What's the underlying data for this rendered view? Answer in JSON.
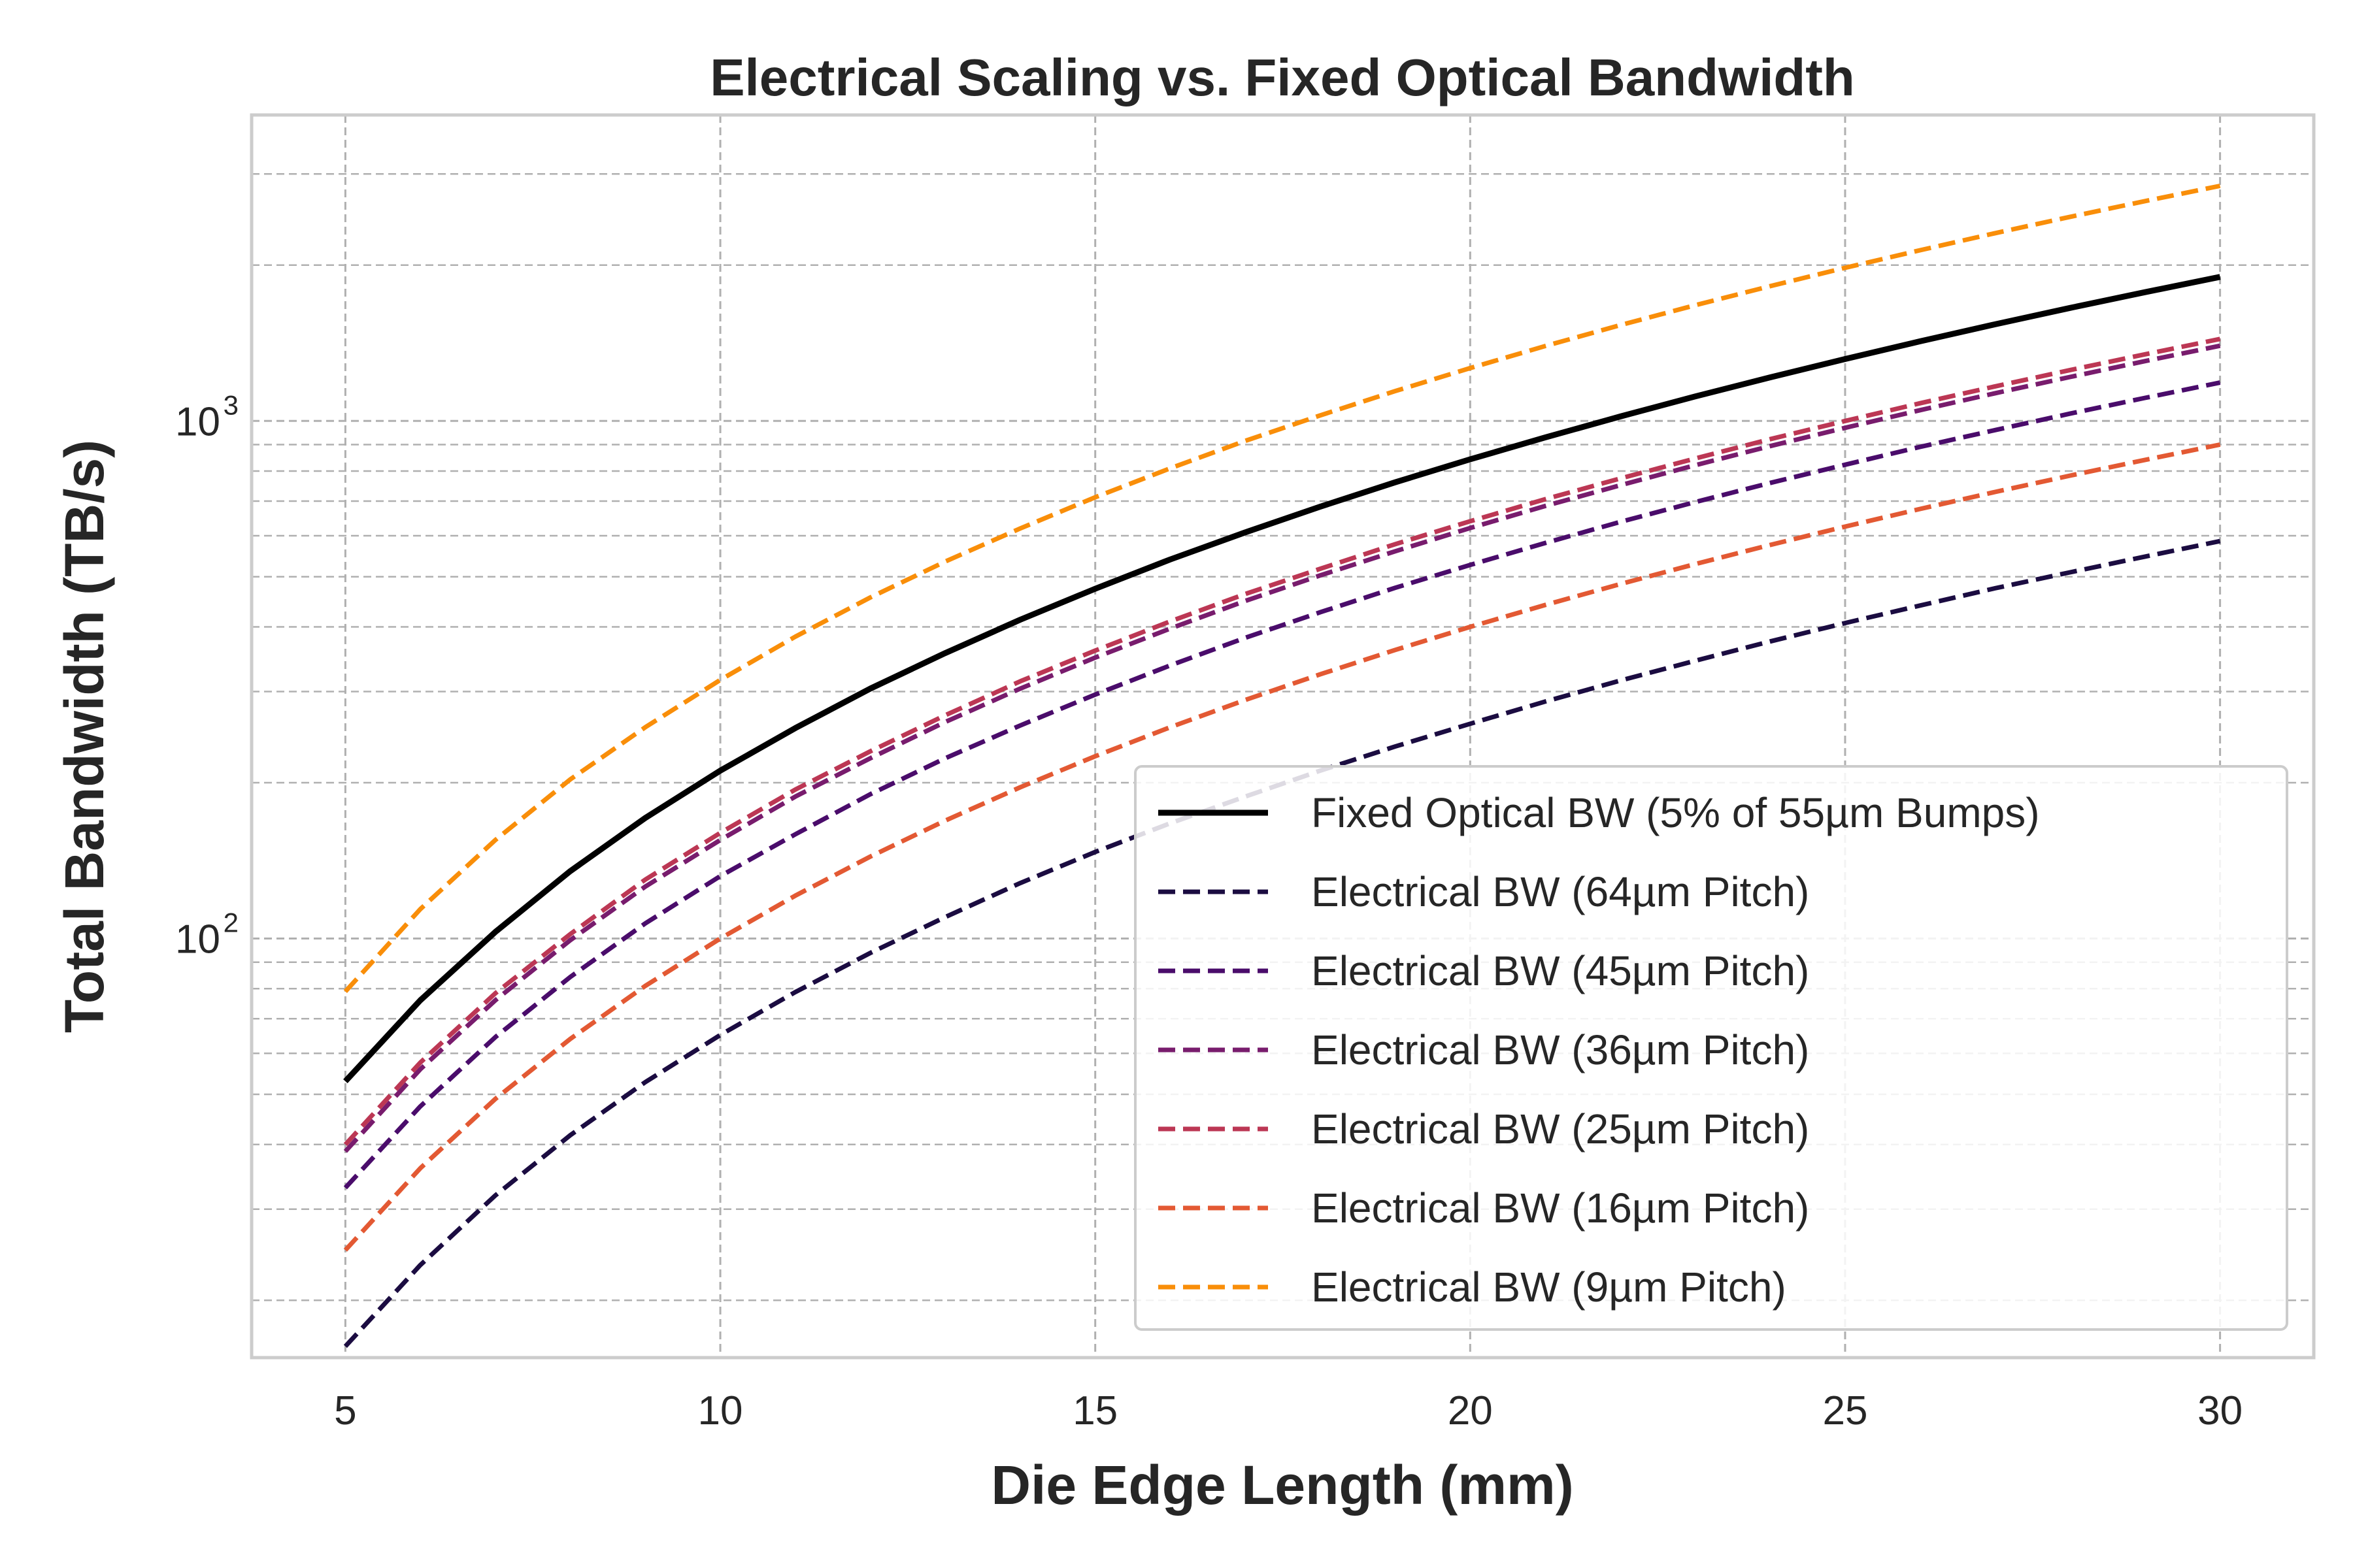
{
  "chart_data": {
    "type": "line",
    "title": "Electrical Scaling vs. Fixed Optical Bandwidth",
    "xlabel": "Die Edge Length (mm)",
    "ylabel": "Total Bandwidth (TB/s)",
    "xscale": "linear",
    "yscale": "log",
    "xlim": [
      3.75,
      31.25
    ],
    "ylim": [
      15.5,
      3900
    ],
    "x_ticks": [
      5,
      10,
      15,
      20,
      25,
      30
    ],
    "y_major_ticks": [
      {
        "base": "10",
        "exp": "2",
        "value": 100
      },
      {
        "base": "10",
        "exp": "3",
        "value": 1000
      }
    ],
    "grid": "major and minor, dashed",
    "legend_position": "lower right",
    "x": [
      5,
      6,
      7,
      8,
      9,
      10,
      11,
      12,
      13,
      14,
      15,
      16,
      17,
      18,
      19,
      20,
      21,
      22,
      23,
      24,
      25,
      26,
      27,
      28,
      29,
      30
    ],
    "series": [
      {
        "name": "Fixed Optical BW (5% of 55µm Bumps)",
        "style": "solid",
        "color": "#000000",
        "values": [
          53,
          76,
          103,
          135,
          171,
          211,
          255,
          304,
          356,
          413,
          474,
          540,
          609,
          683,
          761,
          843,
          929,
          1020,
          1115,
          1214,
          1317,
          1425,
          1537,
          1653,
          1773,
          1898
        ]
      },
      {
        "name": "Electrical BW (64µm Pitch)",
        "style": "dashed",
        "color": "#1b0c41",
        "values": [
          16.3,
          23.4,
          31.9,
          41.7,
          52.8,
          65.1,
          78.8,
          93.8,
          110,
          128,
          147,
          167,
          188,
          211,
          235,
          260,
          287,
          315,
          344,
          375,
          407,
          440,
          475,
          510,
          547,
          586
        ]
      },
      {
        "name": "Electrical BW (45µm Pitch)",
        "style": "dashed",
        "color": "#4a0c6b",
        "values": [
          33,
          47.4,
          64.5,
          84.3,
          107,
          132,
          159,
          190,
          223,
          258,
          296,
          337,
          381,
          427,
          476,
          527,
          581,
          638,
          697,
          759,
          823,
          891,
          960,
          1033,
          1108,
          1186
        ]
      },
      {
        "name": "Electrical BW (36µm Pitch)",
        "style": "dashed",
        "color": "#781c6d",
        "values": [
          38.8,
          55.9,
          76,
          99.3,
          126,
          155,
          188,
          223,
          262,
          304,
          349,
          397,
          449,
          503,
          560,
          621,
          685,
          751,
          821,
          894,
          970,
          1049,
          1131,
          1216,
          1305,
          1397
        ]
      },
      {
        "name": "Electrical BW (25µm Pitch)",
        "style": "dashed",
        "color": "#bc3754",
        "values": [
          40,
          57.6,
          78.4,
          102,
          130,
          160,
          194,
          230,
          270,
          314,
          360,
          410,
          463,
          518,
          578,
          640,
          706,
          774,
          846,
          922,
          1000,
          1082,
          1166,
          1254,
          1345,
          1440
        ]
      },
      {
        "name": "Electrical BW (16µm Pitch)",
        "style": "dashed",
        "color": "#e35933",
        "values": [
          25,
          36,
          49,
          64,
          81,
          100,
          121,
          144,
          169,
          196,
          225,
          256,
          289,
          324,
          361,
          400,
          441,
          484,
          529,
          576,
          625,
          676,
          729,
          784,
          841,
          900
        ]
      },
      {
        "name": "Electrical BW (9µm Pitch)",
        "style": "dashed",
        "color": "#f98e09",
        "values": [
          79,
          114,
          155,
          203,
          256,
          316,
          383,
          456,
          535,
          620,
          712,
          810,
          915,
          1025,
          1142,
          1265,
          1395,
          1531,
          1673,
          1821,
          1976,
          2137,
          2305,
          2479,
          2659,
          2845
        ]
      }
    ]
  }
}
